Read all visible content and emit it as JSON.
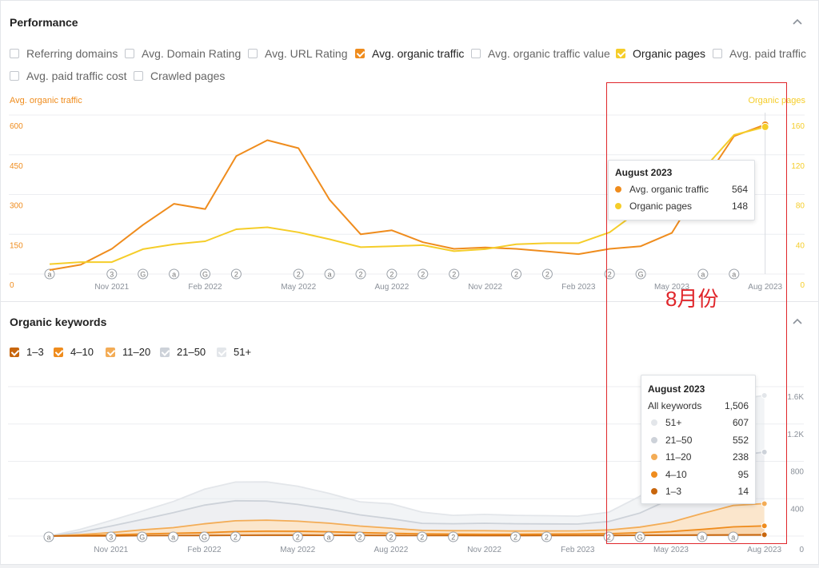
{
  "colors": {
    "traffic": "#ef8c1d",
    "pages": "#f5cd29",
    "kw_13": "#c8660d",
    "kw_410": "#ef8c1d",
    "kw_1120": "#f3ac56",
    "kw_2150": "#cdd2d9",
    "kw_51": "#e3e6ea",
    "annotation": "#e0262b"
  },
  "performance": {
    "title": "Performance",
    "options": [
      {
        "label": "Referring domains",
        "checked": false
      },
      {
        "label": "Avg. Domain Rating",
        "checked": false
      },
      {
        "label": "Avg. URL Rating",
        "checked": false
      },
      {
        "label": "Avg. organic traffic",
        "checked": true,
        "color": "#ef8c1d"
      },
      {
        "label": "Avg. organic traffic value",
        "checked": false
      },
      {
        "label": "Organic pages",
        "checked": true,
        "color": "#f5cd29"
      },
      {
        "label": "Avg. paid traffic",
        "checked": false
      },
      {
        "label": "Avg. paid traffic cost",
        "checked": false
      },
      {
        "label": "Crawled pages",
        "checked": false
      }
    ],
    "left_axis_title": "Avg. organic traffic",
    "right_axis_title": "Organic pages",
    "tooltip": {
      "title": "August 2023",
      "rows": [
        {
          "label": "Avg. organic traffic",
          "value": "564",
          "color": "#ef8c1d"
        },
        {
          "label": "Organic pages",
          "value": "148",
          "color": "#f5cd29"
        }
      ]
    }
  },
  "keywords": {
    "title": "Organic keywords",
    "legend": [
      {
        "label": "1–3",
        "color": "#c8660d"
      },
      {
        "label": "4–10",
        "color": "#ef8c1d"
      },
      {
        "label": "11–20",
        "color": "#f3ac56"
      },
      {
        "label": "21–50",
        "color": "#cdd2d9"
      },
      {
        "label": "51+",
        "color": "#e3e6ea"
      }
    ],
    "tooltip": {
      "title": "August 2023",
      "total_label": "All keywords",
      "total_value": "1,506",
      "rows": [
        {
          "label": "51+",
          "value": "607",
          "color": "#e3e6ea"
        },
        {
          "label": "21–50",
          "value": "552",
          "color": "#cdd2d9"
        },
        {
          "label": "11–20",
          "value": "238",
          "color": "#f3ac56"
        },
        {
          "label": "4–10",
          "value": "95",
          "color": "#ef8c1d"
        },
        {
          "label": "1–3",
          "value": "14",
          "color": "#c8660d"
        }
      ]
    }
  },
  "annotation": "8月份",
  "chart_data": [
    {
      "type": "line",
      "title": "Performance",
      "x": [
        "Sep 2021",
        "Oct 2021",
        "Nov 2021",
        "Dec 2021",
        "Jan 2022",
        "Feb 2022",
        "Mar 2022",
        "Apr 2022",
        "May 2022",
        "Jun 2022",
        "Jul 2022",
        "Aug 2022",
        "Sep 2022",
        "Oct 2022",
        "Nov 2022",
        "Dec 2022",
        "Jan 2023",
        "Feb 2023",
        "Mar 2023",
        "Apr 2023",
        "May 2023",
        "Jun 2023",
        "Jul 2023",
        "Aug 2023"
      ],
      "x_tick_labels": [
        "Nov 2021",
        "Feb 2022",
        "May 2022",
        "Aug 2022",
        "Nov 2022",
        "Feb 2023",
        "May 2023",
        "Aug 2023"
      ],
      "series": [
        {
          "name": "Avg. organic traffic",
          "axis": "left",
          "values": [
            15,
            35,
            95,
            185,
            265,
            245,
            445,
            505,
            475,
            280,
            150,
            165,
            120,
            95,
            100,
            95,
            85,
            75,
            95,
            105,
            155,
            345,
            520,
            564
          ]
        },
        {
          "name": "Organic pages",
          "axis": "right",
          "values": [
            10,
            12,
            12,
            25,
            30,
            33,
            45,
            47,
            42,
            35,
            27,
            28,
            29,
            23,
            25,
            30,
            31,
            31,
            42,
            65,
            85,
            105,
            140,
            148
          ]
        }
      ],
      "left_axis": {
        "title": "Avg. organic traffic",
        "ylim": [
          0,
          600
        ],
        "ticks": [
          "0",
          "150",
          "300",
          "450",
          "600"
        ]
      },
      "right_axis": {
        "title": "Organic pages",
        "ylim": [
          0,
          160
        ],
        "ticks": [
          "0",
          "40",
          "80",
          "120",
          "160"
        ]
      },
      "annotation_markers": [
        "a",
        "3",
        "G",
        "a",
        "G",
        "2",
        "2",
        "a",
        "2",
        "2",
        "2",
        "2",
        "2",
        "2",
        "2",
        "G",
        "a",
        "a"
      ]
    },
    {
      "type": "area",
      "title": "Organic keywords",
      "x": [
        "Sep 2021",
        "Oct 2021",
        "Nov 2021",
        "Dec 2021",
        "Jan 2022",
        "Feb 2022",
        "Mar 2022",
        "Apr 2022",
        "May 2022",
        "Jun 2022",
        "Jul 2022",
        "Aug 2022",
        "Sep 2022",
        "Oct 2022",
        "Nov 2022",
        "Dec 2022",
        "Jan 2023",
        "Feb 2023",
        "Mar 2023",
        "Apr 2023",
        "May 2023",
        "Jun 2023",
        "Jul 2023",
        "Aug 2023"
      ],
      "x_tick_labels": [
        "Nov 2021",
        "Feb 2022",
        "May 2022",
        "Aug 2022",
        "Nov 2022",
        "Feb 2023",
        "May 2023",
        "Aug 2023"
      ],
      "stacked": true,
      "series": [
        {
          "name": "1–3",
          "values": [
            0,
            1,
            2,
            4,
            5,
            6,
            8,
            9,
            9,
            8,
            7,
            6,
            5,
            5,
            4,
            4,
            5,
            5,
            6,
            8,
            9,
            11,
            13,
            14
          ]
        },
        {
          "name": "4–10",
          "values": [
            0,
            4,
            10,
            18,
            25,
            30,
            40,
            43,
            42,
            38,
            30,
            24,
            18,
            16,
            15,
            15,
            16,
            17,
            20,
            28,
            40,
            60,
            85,
            95
          ]
        },
        {
          "name": "11–20",
          "values": [
            0,
            10,
            25,
            45,
            60,
            95,
            115,
            118,
            108,
            92,
            70,
            55,
            38,
            36,
            38,
            35,
            34,
            34,
            40,
            60,
            100,
            170,
            230,
            238
          ]
        },
        {
          "name": "21–50",
          "values": [
            0,
            25,
            70,
            110,
            160,
            200,
            215,
            205,
            180,
            150,
            120,
            100,
            75,
            75,
            80,
            78,
            75,
            72,
            90,
            150,
            250,
            400,
            530,
            552
          ]
        },
        {
          "name": "51+",
          "values": [
            0,
            30,
            60,
            90,
            120,
            170,
            200,
            205,
            195,
            170,
            140,
            160,
            120,
            90,
            95,
            90,
            88,
            85,
            100,
            180,
            330,
            500,
            600,
            607
          ]
        }
      ],
      "ylim": [
        0,
        1600
      ],
      "right_axis_ticks": [
        "0",
        "400",
        "800",
        "1.2K",
        "1.6K"
      ],
      "annotation_markers": [
        "a",
        "3",
        "G",
        "a",
        "G",
        "2",
        "2",
        "a",
        "2",
        "2",
        "2",
        "2",
        "2",
        "2",
        "2",
        "G",
        "a",
        "a"
      ]
    }
  ]
}
